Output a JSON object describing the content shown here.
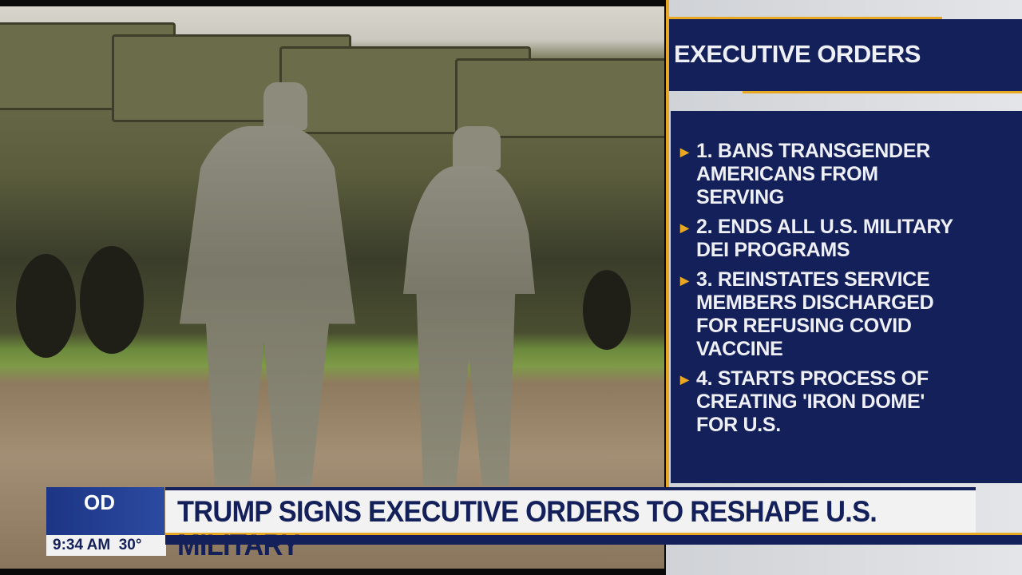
{
  "sidebar": {
    "title": "EXECUTIVE ORDERS",
    "items": [
      {
        "label": "1. BANS TRANSGENDER AMERICANS FROM SERVING"
      },
      {
        "label": "2. ENDS ALL U.S. MILITARY DEI PROGRAMS"
      },
      {
        "label": "3. REINSTATES SERVICE MEMBERS DISCHARGED FOR REFUSING COVID VACCINE"
      },
      {
        "label": "4. STARTS PROCESS OF CREATING 'IRON DOME' FOR U.S."
      }
    ],
    "bullet": "▶"
  },
  "lower_third": {
    "logo": "OD",
    "time": "9:34 AM",
    "temperature": "30°",
    "headline": "TRUMP SIGNS EXECUTIVE ORDERS TO RESHAPE U.S. MILITARY"
  },
  "colors": {
    "navy": "#14205a",
    "accent": "#e8a824"
  }
}
